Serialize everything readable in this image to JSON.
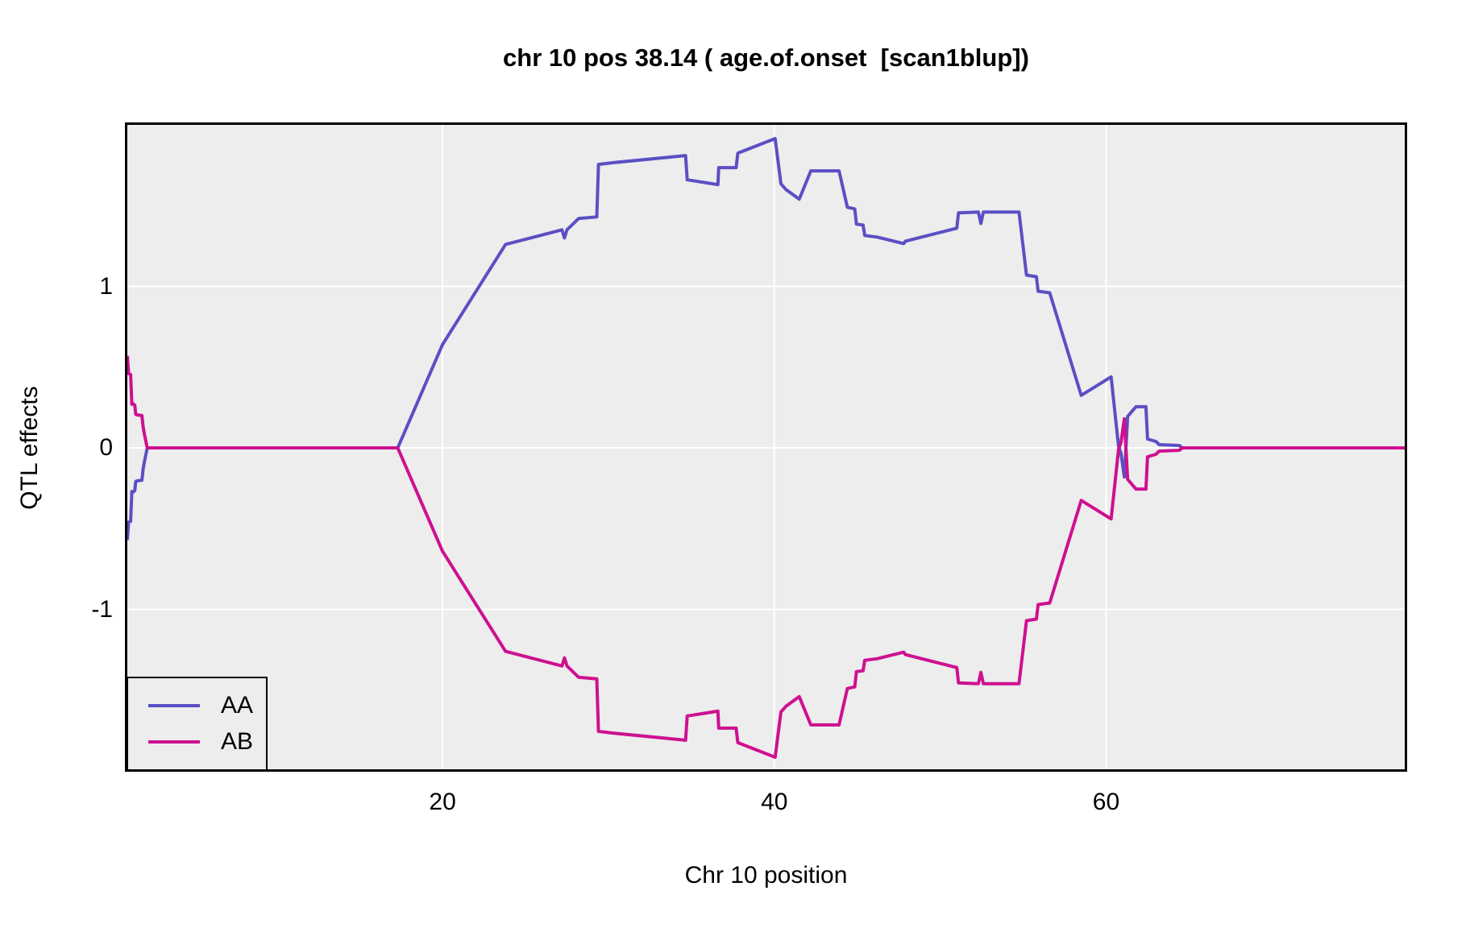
{
  "page": {
    "background": "#FFFFFF"
  },
  "chart_data": {
    "type": "line",
    "title": "chr 10 pos 38.14 ( age.of.onset  [scan1blup])",
    "xlabel": "Chr 10 position",
    "ylabel": "QTL effects",
    "xlim": [
      1,
      78
    ],
    "ylim": [
      -1.99,
      2.0
    ],
    "grid": true,
    "panel_bg": "#EDEDED",
    "grid_color": "#FFFFFF",
    "border_color": "#000000",
    "legend_position": "bottom-left",
    "x_ticks": [
      {
        "label": "20",
        "value": 20
      },
      {
        "label": "40",
        "value": 40
      },
      {
        "label": "60",
        "value": 60
      }
    ],
    "y_ticks": [
      {
        "label": "1",
        "value": 1
      },
      {
        "label": "0",
        "value": 0
      },
      {
        "label": "-1",
        "value": -1
      }
    ],
    "series": [
      {
        "name": "AA",
        "color": "#5B4FC4",
        "points": [
          [
            1.0,
            -0.57
          ],
          [
            1.08,
            -0.46
          ],
          [
            1.2,
            -0.455
          ],
          [
            1.27,
            -0.27
          ],
          [
            1.32,
            -0.275
          ],
          [
            1.45,
            -0.265
          ],
          [
            1.5,
            -0.21
          ],
          [
            1.55,
            -0.205
          ],
          [
            1.88,
            -0.2
          ],
          [
            1.95,
            -0.13
          ],
          [
            2.02,
            -0.09
          ],
          [
            2.2,
            0
          ],
          [
            17.3,
            0
          ],
          [
            20.0,
            0.64
          ],
          [
            23.8,
            1.26
          ],
          [
            27.2,
            1.35
          ],
          [
            27.35,
            1.3
          ],
          [
            27.5,
            1.35
          ],
          [
            28.2,
            1.42
          ],
          [
            29.3,
            1.43
          ],
          [
            29.4,
            1.755
          ],
          [
            30.2,
            1.765
          ],
          [
            34.65,
            1.81
          ],
          [
            34.75,
            1.66
          ],
          [
            36.6,
            1.63
          ],
          [
            36.65,
            1.735
          ],
          [
            37.7,
            1.735
          ],
          [
            37.8,
            1.825
          ],
          [
            40.05,
            1.915
          ],
          [
            40.4,
            1.635
          ],
          [
            40.7,
            1.6
          ],
          [
            41.5,
            1.54
          ],
          [
            42.2,
            1.715
          ],
          [
            43.9,
            1.715
          ],
          [
            44.4,
            1.49
          ],
          [
            44.85,
            1.48
          ],
          [
            44.95,
            1.385
          ],
          [
            45.35,
            1.38
          ],
          [
            45.45,
            1.315
          ],
          [
            46.2,
            1.305
          ],
          [
            47.8,
            1.265
          ],
          [
            47.9,
            1.28
          ],
          [
            51.0,
            1.36
          ],
          [
            51.1,
            1.455
          ],
          [
            52.3,
            1.46
          ],
          [
            52.45,
            1.39
          ],
          [
            52.6,
            1.46
          ],
          [
            54.75,
            1.46
          ],
          [
            55.2,
            1.07
          ],
          [
            55.8,
            1.06
          ],
          [
            55.9,
            0.97
          ],
          [
            56.6,
            0.96
          ],
          [
            58.5,
            0.325
          ],
          [
            60.3,
            0.44
          ],
          [
            60.75,
            0.01
          ],
          [
            60.9,
            -0.035
          ],
          [
            61.1,
            -0.18
          ],
          [
            61.3,
            0.195
          ],
          [
            61.8,
            0.255
          ],
          [
            62.4,
            0.255
          ],
          [
            62.5,
            0.055
          ],
          [
            63.0,
            0.04
          ],
          [
            63.2,
            0.02
          ],
          [
            64.4,
            0.015
          ],
          [
            64.6,
            0
          ],
          [
            78,
            0
          ]
        ]
      },
      {
        "name": "AB",
        "color": "#CE1090",
        "points": [
          [
            1.0,
            0.57
          ],
          [
            1.08,
            0.46
          ],
          [
            1.2,
            0.455
          ],
          [
            1.27,
            0.27
          ],
          [
            1.32,
            0.275
          ],
          [
            1.45,
            0.265
          ],
          [
            1.5,
            0.21
          ],
          [
            1.55,
            0.205
          ],
          [
            1.88,
            0.2
          ],
          [
            1.95,
            0.13
          ],
          [
            2.02,
            0.09
          ],
          [
            2.2,
            0
          ],
          [
            17.3,
            0
          ],
          [
            20.0,
            -0.64
          ],
          [
            23.8,
            -1.26
          ],
          [
            27.2,
            -1.35
          ],
          [
            27.35,
            -1.3
          ],
          [
            27.5,
            -1.35
          ],
          [
            28.2,
            -1.42
          ],
          [
            29.3,
            -1.43
          ],
          [
            29.4,
            -1.755
          ],
          [
            30.2,
            -1.765
          ],
          [
            34.65,
            -1.81
          ],
          [
            34.75,
            -1.66
          ],
          [
            36.6,
            -1.63
          ],
          [
            36.65,
            -1.735
          ],
          [
            37.7,
            -1.735
          ],
          [
            37.8,
            -1.825
          ],
          [
            40.05,
            -1.915
          ],
          [
            40.4,
            -1.635
          ],
          [
            40.7,
            -1.6
          ],
          [
            41.5,
            -1.54
          ],
          [
            42.2,
            -1.715
          ],
          [
            43.9,
            -1.715
          ],
          [
            44.4,
            -1.49
          ],
          [
            44.85,
            -1.48
          ],
          [
            44.95,
            -1.385
          ],
          [
            45.35,
            -1.38
          ],
          [
            45.45,
            -1.315
          ],
          [
            46.2,
            -1.305
          ],
          [
            47.8,
            -1.265
          ],
          [
            47.9,
            -1.28
          ],
          [
            51.0,
            -1.36
          ],
          [
            51.1,
            -1.455
          ],
          [
            52.3,
            -1.46
          ],
          [
            52.45,
            -1.39
          ],
          [
            52.6,
            -1.46
          ],
          [
            54.75,
            -1.46
          ],
          [
            55.2,
            -1.07
          ],
          [
            55.8,
            -1.06
          ],
          [
            55.9,
            -0.97
          ],
          [
            56.6,
            -0.96
          ],
          [
            58.5,
            -0.325
          ],
          [
            60.3,
            -0.44
          ],
          [
            60.75,
            -0.01
          ],
          [
            60.9,
            0.035
          ],
          [
            61.1,
            0.18
          ],
          [
            61.3,
            -0.195
          ],
          [
            61.8,
            -0.255
          ],
          [
            62.4,
            -0.255
          ],
          [
            62.5,
            -0.055
          ],
          [
            63.0,
            -0.04
          ],
          [
            63.2,
            -0.02
          ],
          [
            64.4,
            -0.015
          ],
          [
            64.6,
            0
          ],
          [
            78,
            0
          ]
        ]
      }
    ]
  }
}
